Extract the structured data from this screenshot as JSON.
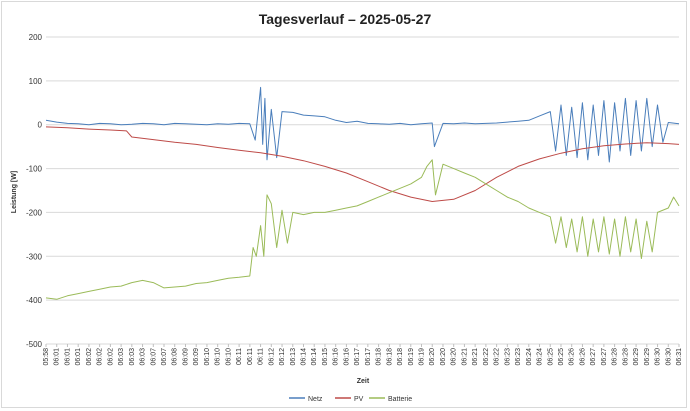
{
  "chart_data": {
    "type": "line",
    "title": "Tagesverlauf – 2025-05-27",
    "xlabel": "Zeit",
    "ylabel": "Leistung [W]",
    "ylim": [
      -500,
      200
    ],
    "yticks": [
      200,
      100,
      0,
      -100,
      -200,
      -300,
      -400,
      -500
    ],
    "grid": "horizontal",
    "legend_position": "bottom",
    "x_ticks": [
      "05:58",
      "06:01",
      "06:01",
      "06:01",
      "06:02",
      "06:02",
      "06:02",
      "06:03",
      "06:03",
      "06:03",
      "06:07",
      "06:07",
      "06:08",
      "06:09",
      "06:09",
      "06:10",
      "06:10",
      "06:10",
      "06:11",
      "06:11",
      "06:11",
      "06:12",
      "06:12",
      "06:13",
      "06:14",
      "06:14",
      "06:15",
      "06:16",
      "06:16",
      "06:17",
      "06:17",
      "06:18",
      "06:18",
      "06:18",
      "06:19",
      "06:19",
      "06:20",
      "06:20",
      "06:20",
      "06:21",
      "06:21",
      "06:22",
      "06:22",
      "06:23",
      "06:23",
      "06:24",
      "06:24",
      "06:25",
      "06:25",
      "06:26",
      "06:26",
      "06:27",
      "06:27",
      "06:28",
      "06:28",
      "06:29",
      "06:29",
      "06:30",
      "06:30",
      "06:31"
    ],
    "series": [
      {
        "name": "Netz",
        "color": "#4a7ebb",
        "x": [
          0,
          1,
          2,
          3,
          4,
          5,
          6,
          7,
          8,
          9,
          10,
          11,
          12,
          13,
          14,
          15,
          16,
          17,
          18,
          19,
          19.5,
          20,
          20.2,
          20.4,
          20.6,
          21,
          21.5,
          22,
          23,
          24,
          25,
          26,
          27,
          28,
          29,
          30,
          31,
          32,
          33,
          34,
          35,
          36,
          36.2,
          37,
          38,
          39,
          40,
          41,
          42,
          43,
          44,
          45,
          46,
          47,
          47.5,
          48,
          48.5,
          49,
          49.5,
          50,
          50.5,
          51,
          51.5,
          52,
          52.5,
          53,
          53.5,
          54,
          54.5,
          55,
          55.5,
          56,
          56.5,
          57,
          57.5,
          58,
          59
        ],
        "values": [
          10,
          6,
          3,
          2,
          0,
          3,
          2,
          0,
          1,
          3,
          2,
          0,
          3,
          2,
          1,
          0,
          2,
          1,
          3,
          2,
          -35,
          85,
          -45,
          60,
          -80,
          35,
          -75,
          30,
          28,
          22,
          20,
          18,
          10,
          5,
          8,
          3,
          2,
          1,
          3,
          0,
          2,
          4,
          -50,
          3,
          2,
          4,
          2,
          3,
          4,
          6,
          8,
          10,
          20,
          30,
          -60,
          45,
          -70,
          40,
          -75,
          50,
          -80,
          45,
          -70,
          55,
          -85,
          50,
          -60,
          60,
          -70,
          55,
          -60,
          60,
          -50,
          45,
          -40,
          5,
          2
        ]
      },
      {
        "name": "PV",
        "color": "#be4b48",
        "x": [
          0,
          2,
          4,
          6,
          7.5,
          8,
          10,
          12,
          14,
          16,
          18,
          20,
          22,
          24,
          26,
          28,
          30,
          32,
          34,
          36,
          38,
          40,
          42,
          44,
          46,
          48,
          50,
          52,
          54,
          56,
          58,
          59
        ],
        "values": [
          -5,
          -7,
          -10,
          -12,
          -14,
          -28,
          -34,
          -40,
          -45,
          -52,
          -58,
          -64,
          -72,
          -82,
          -95,
          -110,
          -130,
          -150,
          -165,
          -175,
          -170,
          -150,
          -120,
          -95,
          -78,
          -65,
          -55,
          -48,
          -44,
          -41,
          -43,
          -45
        ]
      },
      {
        "name": "Batterie",
        "color": "#9bbb59",
        "x": [
          0,
          1,
          2,
          3,
          4,
          5,
          6,
          7,
          8,
          9,
          10,
          11,
          12,
          13,
          14,
          15,
          16,
          17,
          18,
          19,
          19.3,
          19.6,
          20,
          20.3,
          20.6,
          21,
          21.5,
          22,
          22.5,
          23,
          24,
          25,
          26,
          27,
          28,
          29,
          30,
          31,
          32,
          33,
          34,
          35,
          35.5,
          36,
          36.3,
          37,
          38,
          39,
          40,
          41,
          42,
          43,
          44,
          45,
          46,
          47,
          47.5,
          48,
          48.5,
          49,
          49.5,
          50,
          50.5,
          51,
          51.5,
          52,
          52.5,
          53,
          53.5,
          54,
          54.5,
          55,
          55.5,
          56,
          56.5,
          57,
          58,
          58.5,
          59
        ],
        "values": [
          -395,
          -398,
          -390,
          -385,
          -380,
          -375,
          -370,
          -368,
          -360,
          -355,
          -360,
          -372,
          -370,
          -368,
          -362,
          -360,
          -355,
          -350,
          -348,
          -345,
          -280,
          -300,
          -230,
          -300,
          -160,
          -180,
          -280,
          -195,
          -270,
          -200,
          -205,
          -200,
          -200,
          -195,
          -190,
          -185,
          -175,
          -165,
          -155,
          -145,
          -135,
          -120,
          -95,
          -80,
          -160,
          -90,
          -100,
          -110,
          -120,
          -135,
          -150,
          -165,
          -175,
          -190,
          -200,
          -210,
          -270,
          -210,
          -280,
          -215,
          -290,
          -210,
          -300,
          -215,
          -290,
          -210,
          -295,
          -215,
          -300,
          -210,
          -290,
          -215,
          -305,
          -220,
          -290,
          -200,
          -190,
          -165,
          -185
        ]
      }
    ]
  }
}
